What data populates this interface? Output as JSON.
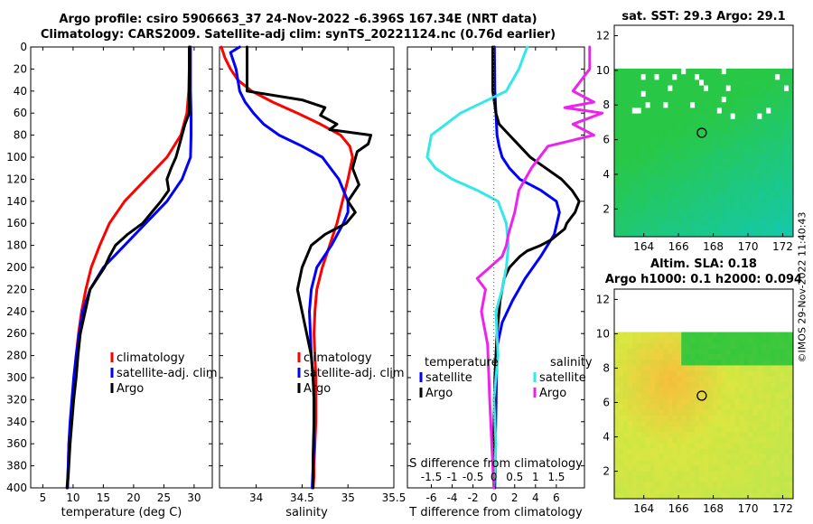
{
  "header": {
    "title1": "Argo profile: csiro 5906663_37 24-Nov-2022 -6.396S 167.34E (NRT data)",
    "title2": "Climatology: CARS2009. Satellite-adj clim: synTS_20221124.nc (0.76d earlier)"
  },
  "stamp": "©IMOS 29-Nov-2022 11:40:43",
  "colors": {
    "red": "#ff0000",
    "blue": "#0000ff",
    "black": "#000000",
    "cyan": "#33e8e8",
    "magenta": "#ee22ee"
  },
  "chart_data": [
    {
      "type": "line",
      "xlabel": "temperature (deg C)",
      "ylabel": "",
      "xlim": [
        3,
        33
      ],
      "ylim": [
        400,
        0
      ],
      "xticks": [
        5,
        10,
        15,
        20,
        25,
        30
      ],
      "yticks": [
        0,
        20,
        40,
        60,
        80,
        100,
        120,
        140,
        160,
        180,
        200,
        220,
        240,
        260,
        280,
        300,
        320,
        340,
        360,
        380,
        400
      ],
      "legend": [
        "climatology",
        "satellite-adj. clim",
        "Argo"
      ],
      "series": [
        {
          "name": "climatology",
          "color": "red",
          "x": [
            29.3,
            29.2,
            29.1,
            28.8,
            27.8,
            25.5,
            22,
            18.5,
            16,
            14.4,
            13,
            12.1,
            11.4,
            10.9,
            10.5,
            10.2,
            9.9,
            9.6,
            9.3,
            9.2,
            9.0
          ],
          "y": [
            0,
            20,
            40,
            60,
            80,
            100,
            120,
            140,
            160,
            180,
            200,
            220,
            240,
            260,
            280,
            300,
            320,
            340,
            360,
            380,
            400
          ]
        },
        {
          "name": "satellite-adj. clim",
          "color": "blue",
          "x": [
            29.4,
            29.4,
            29.4,
            29.5,
            29.5,
            29.4,
            28,
            25.5,
            22,
            18.5,
            15,
            12.8,
            11.6,
            11,
            10.5,
            10.1,
            9.8,
            9.5,
            9.3,
            9.2,
            9.1
          ],
          "y": [
            0,
            20,
            40,
            60,
            80,
            100,
            120,
            140,
            160,
            180,
            200,
            220,
            240,
            260,
            280,
            300,
            320,
            340,
            360,
            380,
            400
          ]
        },
        {
          "name": "Argo",
          "color": "black",
          "x": [
            29.2,
            29.2,
            29.2,
            29.2,
            28.5,
            28,
            27.5,
            27,
            26.2,
            25.5,
            25.8,
            24.5,
            23,
            21.5,
            19,
            17,
            16,
            15.2,
            14,
            12.8,
            12,
            11.6,
            11.2,
            10.8,
            10.5,
            10.1,
            9.8,
            9.5,
            9.3,
            9.2,
            9.0
          ],
          "y": [
            0,
            20,
            40,
            60,
            70,
            80,
            90,
            100,
            110,
            120,
            130,
            140,
            150,
            160,
            170,
            180,
            190,
            200,
            210,
            220,
            240,
            250,
            260,
            280,
            300,
            320,
            340,
            360,
            380,
            390,
            400
          ]
        }
      ]
    },
    {
      "type": "line",
      "xlabel": "salinity",
      "xlim": [
        33.6,
        35.5
      ],
      "ylim": [
        400,
        0
      ],
      "xticks": [
        34,
        34.5,
        35,
        35.5
      ],
      "legend": [
        "climatology",
        "satellite-adj. clim",
        "Argo"
      ],
      "series": [
        {
          "name": "climatology",
          "color": "red",
          "x": [
            33.62,
            33.66,
            33.72,
            33.8,
            33.95,
            34.18,
            34.45,
            34.7,
            34.92,
            35.02,
            35.05,
            35.0,
            34.94,
            34.88,
            34.8,
            34.72,
            34.66,
            34.64,
            34.63,
            34.64,
            34.65,
            34.65,
            34.65,
            34.64,
            34.63,
            34.63,
            34.62
          ],
          "y": [
            0,
            10,
            20,
            30,
            40,
            50,
            60,
            70,
            80,
            90,
            100,
            120,
            140,
            160,
            180,
            200,
            220,
            240,
            260,
            280,
            300,
            320,
            340,
            360,
            380,
            390,
            400
          ]
        },
        {
          "name": "satellite-adj. clim",
          "color": "blue",
          "x": [
            33.82,
            33.72,
            33.78,
            33.82,
            33.88,
            33.97,
            34.08,
            34.25,
            34.5,
            34.72,
            34.9,
            35.0,
            35.0,
            34.95,
            34.82,
            34.66,
            34.6,
            34.58,
            34.59,
            34.6,
            34.62,
            34.63,
            34.63,
            34.63,
            34.62,
            34.61
          ],
          "y": [
            0,
            5,
            20,
            40,
            50,
            60,
            70,
            80,
            90,
            100,
            120,
            140,
            150,
            160,
            180,
            200,
            220,
            240,
            260,
            280,
            300,
            320,
            340,
            360,
            380,
            400
          ]
        },
        {
          "name": "Argo",
          "color": "black",
          "x": [
            33.9,
            33.9,
            33.9,
            34.5,
            34.75,
            34.7,
            34.88,
            34.8,
            35.25,
            35.22,
            35.1,
            35.05,
            35.12,
            35.0,
            35.08,
            34.98,
            34.75,
            34.6,
            34.5,
            34.45,
            34.5,
            34.55,
            34.6,
            34.62,
            34.63,
            34.63,
            34.62,
            34.62
          ],
          "y": [
            0,
            20,
            40,
            48,
            55,
            62,
            70,
            75,
            80,
            88,
            95,
            110,
            125,
            140,
            150,
            160,
            170,
            180,
            200,
            220,
            240,
            260,
            280,
            300,
            320,
            340,
            370,
            400
          ]
        }
      ]
    },
    {
      "type": "line",
      "xlabel": "T difference from climatology",
      "x2label": "S difference from climatology",
      "xlim": [
        -8.3,
        8.7
      ],
      "ylim": [
        400,
        0
      ],
      "xticks": [
        -6,
        -4,
        -2,
        0,
        2,
        4,
        6
      ],
      "xticks_S": [
        -1.5,
        -1,
        -0.5,
        0,
        0.5,
        1,
        1.5
      ],
      "S_scale": 4,
      "legend_left_title": "temperature",
      "legend_right_title": "salinity",
      "legend": [
        "satellite",
        "Argo",
        "satellite",
        "Argo"
      ],
      "series": [
        {
          "name": "temperature satellite",
          "color": "blue",
          "x": [
            0.05,
            0.1,
            0.2,
            0.3,
            0.5,
            0.8,
            1.5,
            2.5,
            4.5,
            6.0,
            6.3,
            5.8,
            4.5,
            3.0,
            1.8,
            0.8,
            0.35,
            0.25,
            0.2,
            0.15,
            0.1
          ],
          "y": [
            0,
            40,
            60,
            80,
            90,
            100,
            110,
            120,
            130,
            140,
            150,
            170,
            190,
            210,
            230,
            250,
            270,
            300,
            330,
            360,
            400
          ]
        },
        {
          "name": "temperature Argo",
          "color": "black",
          "x": [
            -0.1,
            -0.1,
            0.2,
            0.5,
            1.5,
            2.5,
            3.5,
            5.0,
            6.5,
            7.5,
            8.2,
            7.8,
            7.0,
            6.8,
            5.5,
            4.5,
            3.2,
            2.5,
            1.5,
            1.0,
            0.6,
            0.3,
            0.1,
            0.0,
            0.05
          ],
          "y": [
            0,
            40,
            60,
            70,
            80,
            90,
            100,
            110,
            120,
            130,
            140,
            150,
            160,
            165,
            175,
            180,
            185,
            190,
            200,
            210,
            230,
            260,
            300,
            350,
            400
          ]
        },
        {
          "name": "salinity satellite",
          "color": "cyan",
          "x": [
            0.8,
            0.6,
            0.3,
            -0.8,
            -1.5,
            -1.6,
            -1.4,
            -1.0,
            -0.4,
            0.1,
            0.3,
            0.35,
            0.3,
            0.2,
            0.05,
            0.1,
            0.0,
            0.05,
            0.0
          ],
          "y": [
            0,
            20,
            40,
            60,
            80,
            100,
            110,
            120,
            130,
            140,
            160,
            180,
            200,
            220,
            240,
            280,
            320,
            360,
            400
          ]
        },
        {
          "name": "salinity Argo",
          "color": "magenta",
          "x": [
            2.3,
            2.3,
            1.9,
            2.4,
            1.7,
            2.6,
            1.9,
            2.4,
            1.3,
            0.9,
            0.6,
            0.5,
            0.35,
            0.3,
            0.2,
            -0.1,
            -0.4,
            -0.2,
            -0.3,
            -0.15,
            -0.1,
            0.0
          ],
          "y": [
            0,
            20,
            40,
            50,
            55,
            60,
            70,
            80,
            90,
            110,
            130,
            150,
            170,
            180,
            190,
            200,
            210,
            220,
            240,
            270,
            320,
            400
          ]
        }
      ]
    },
    {
      "type": "heatmap",
      "title": "sat. SST: 29.3 Argo: 29.1",
      "xlim": [
        162.3,
        172.6
      ],
      "ylim": [
        0.4,
        12.6
      ],
      "xticks": [
        164,
        166,
        168,
        170,
        172
      ],
      "yticks": [
        2,
        4,
        6,
        8,
        10,
        12
      ],
      "data_top": 10.1,
      "argo_lon": 167.34,
      "argo_lat": 6.396
    },
    {
      "type": "heatmap",
      "title": "Altim. SLA: 0.18",
      "subtitle": "Argo h1000: 0.1 h2000: 0.094",
      "xlim": [
        162.3,
        172.6
      ],
      "ylim": [
        0.4,
        12.6
      ],
      "xticks": [
        164,
        166,
        168,
        170,
        172
      ],
      "yticks": [
        2,
        4,
        6,
        8,
        10,
        12
      ],
      "data_top": 10.1,
      "argo_lon": 167.34,
      "argo_lat": 6.396
    }
  ]
}
